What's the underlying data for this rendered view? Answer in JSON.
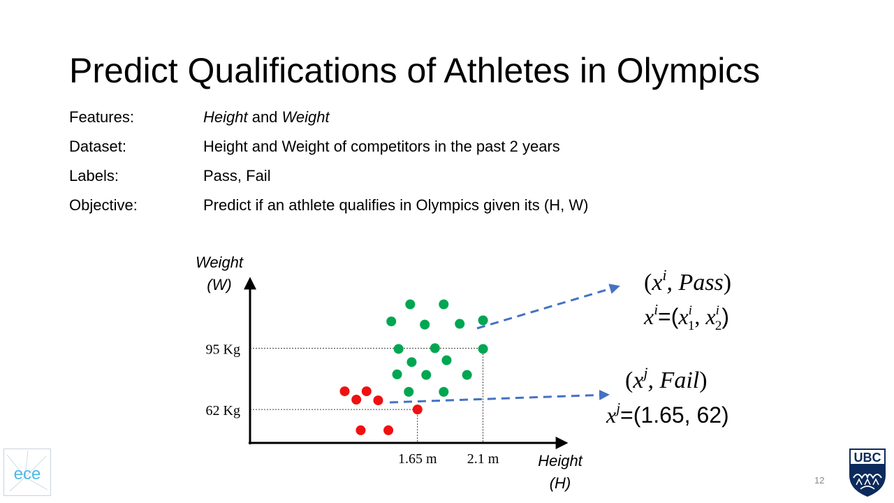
{
  "slide": {
    "title": "Predict Qualifications of Athletes in Olympics",
    "page_number": "12"
  },
  "info": {
    "features_label": "Features:",
    "features_value_1": "Height",
    "features_value_and": " and ",
    "features_value_2": "Weight",
    "dataset_label": "Dataset:",
    "dataset_value": "Height and Weight of competitors in the past 2 years",
    "labels_label": "Labels:",
    "labels_value": "Pass, Fail",
    "objective_label": "Objective:",
    "objective_value": "Predict if an athlete qualifies in Olympics given its (H, W)"
  },
  "chart_data": {
    "type": "scatter",
    "ylabel_line1": "Weight",
    "ylabel_line2": "(W)",
    "xlabel_line1": "Height",
    "xlabel_line2": "(H)",
    "grid": false,
    "xlim": [
      0.5,
      2.62
    ],
    "ylim": [
      44,
      132
    ],
    "y_ticks": [
      {
        "value": 95,
        "label": "95 Kg"
      },
      {
        "value": 62,
        "label": "62 Kg"
      }
    ],
    "x_ticks": [
      {
        "value": 1.65,
        "label": "1.65 m"
      },
      {
        "value": 2.1,
        "label": "2.1 m"
      }
    ],
    "series": [
      {
        "name": "Pass",
        "color": "#00a651",
        "points": [
          [
            1.47,
            109.4
          ],
          [
            1.6,
            118.6
          ],
          [
            1.7,
            107.7
          ],
          [
            1.83,
            118.6
          ],
          [
            1.94,
            108.1
          ],
          [
            2.1,
            110.0
          ],
          [
            1.52,
            94.6
          ],
          [
            1.77,
            95.0
          ],
          [
            2.1,
            94.6
          ],
          [
            1.61,
            87.5
          ],
          [
            1.85,
            88.5
          ],
          [
            1.51,
            80.9
          ],
          [
            1.71,
            80.6
          ],
          [
            1.99,
            80.6
          ],
          [
            1.59,
            71.5
          ],
          [
            1.83,
            71.5
          ]
        ]
      },
      {
        "name": "Fail",
        "color": "#ee1111",
        "points": [
          [
            1.15,
            71.8
          ],
          [
            1.3,
            71.8
          ],
          [
            1.23,
            67.3
          ],
          [
            1.38,
            66.9
          ],
          [
            1.65,
            62.0
          ],
          [
            1.26,
            50.8
          ],
          [
            1.45,
            50.8
          ]
        ]
      }
    ],
    "annotations": {
      "pass_tuple_x": "x",
      "pass_tuple_sup": "i",
      "pass_tuple_label": ", Pass",
      "pass_vec_x": "x",
      "pass_vec_sup": "i",
      "pass_vec_eq": "=(",
      "pass_vec_x1": "x",
      "pass_vec_x1_sup": "i",
      "pass_vec_x1_sub": "1",
      "pass_vec_sep": ", ",
      "pass_vec_x2": "x",
      "pass_vec_x2_sup": "i",
      "pass_vec_x2_sub": "2",
      "pass_vec_close": ")",
      "fail_tuple_x": "x",
      "fail_tuple_sup": "j",
      "fail_tuple_label": ", Fail",
      "fail_vec_x": "x",
      "fail_vec_sup": "j",
      "fail_vec_value": "=(1.65, 62)",
      "arrow_color": "#4472c4"
    }
  },
  "logos": {
    "ece_text": "ece",
    "ubc_text": "UBC"
  }
}
